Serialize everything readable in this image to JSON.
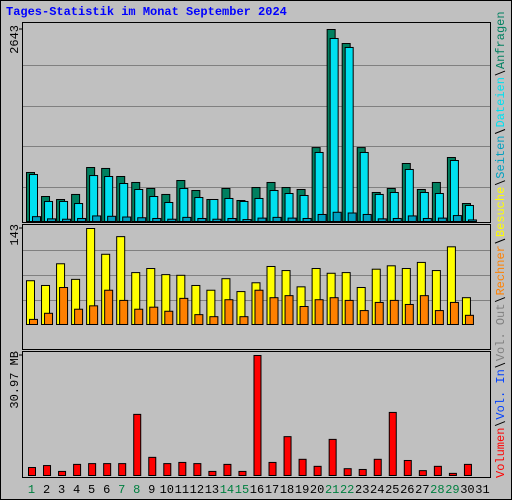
{
  "title": "Tages-Statistik im Monat September 2024",
  "chart_data": [
    {
      "type": "bar",
      "categories": [
        "1",
        "2",
        "3",
        "4",
        "5",
        "6",
        "7",
        "8",
        "9",
        "10",
        "11",
        "12",
        "13",
        "14",
        "15",
        "16",
        "17",
        "18",
        "19",
        "20",
        "21",
        "22",
        "23",
        "24",
        "25",
        "26",
        "27",
        "28",
        "29",
        "30",
        "31"
      ],
      "category_colors": [
        "#008040",
        "#000000",
        "#000000",
        "#000000",
        "#000000",
        "#000000",
        "#008040",
        "#008040",
        "#000000",
        "#000000",
        "#000000",
        "#000000",
        "#000000",
        "#008040",
        "#008040",
        "#000000",
        "#000000",
        "#000000",
        "#000000",
        "#000000",
        "#008040",
        "#008040",
        "#000000",
        "#000000",
        "#000000",
        "#000000",
        "#000000",
        "#008040",
        "#008040",
        "#000000",
        "#000000"
      ],
      "ylim": [
        0,
        2643
      ],
      "yticks": [
        2643
      ],
      "series": [
        {
          "name": "Anfragen",
          "color": "#008060",
          "values": [
            685,
            356,
            315,
            384,
            753,
            740,
            630,
            548,
            466,
            384,
            575,
            438,
            315,
            466,
            301,
            479,
            548,
            479,
            452,
            1026,
            2643,
            2451,
            1026,
            411,
            466,
            808,
            452,
            548,
            890,
            260,
            null
          ]
        },
        {
          "name": "Dateien",
          "color": "#00e0f0",
          "values": [
            657,
            288,
            288,
            260,
            643,
            630,
            534,
            452,
            356,
            274,
            466,
            342,
            315,
            329,
            288,
            329,
            438,
            397,
            370,
            959,
            2520,
            2397,
            959,
            384,
            411,
            726,
            411,
            397,
            849,
            233,
            null
          ]
        },
        {
          "name": "Seiten",
          "color": "#00a0c0",
          "values": [
            80,
            50,
            45,
            55,
            90,
            85,
            75,
            65,
            55,
            45,
            70,
            55,
            45,
            55,
            40,
            60,
            70,
            60,
            55,
            110,
            140,
            130,
            110,
            50,
            55,
            90,
            55,
            60,
            95,
            35,
            null
          ]
        }
      ]
    },
    {
      "type": "bar",
      "ylim": [
        0,
        143
      ],
      "yticks": [
        143
      ],
      "series": [
        {
          "name": "Besuche",
          "color": "#ffff00",
          "values": [
            66,
            59,
            91,
            68,
            143,
            105,
            131,
            78,
            84,
            75,
            74,
            59,
            52,
            69,
            50,
            63,
            87,
            81,
            57,
            84,
            77,
            78,
            56,
            83,
            88,
            84,
            93,
            81,
            116,
            41,
            null
          ]
        },
        {
          "name": "Rechner",
          "color": "#ff8000",
          "values": [
            9,
            18,
            56,
            24,
            29,
            52,
            37,
            24,
            27,
            21,
            40,
            16,
            13,
            38,
            13,
            52,
            41,
            44,
            28,
            38,
            41,
            37,
            22,
            34,
            37,
            31,
            44,
            22,
            34,
            15,
            null
          ]
        }
      ]
    },
    {
      "type": "bar",
      "ylim": [
        0,
        30.97
      ],
      "yticks": [
        {
          "value": 30.97,
          "label": "30.97 MB"
        }
      ],
      "series": [
        {
          "name": "Vol. Out",
          "color": "#808080",
          "values": [
            null,
            null,
            null,
            null,
            null,
            null,
            null,
            null,
            null,
            null,
            null,
            null,
            null,
            null,
            null,
            null,
            null,
            null,
            null,
            null,
            null,
            null,
            null,
            null,
            null,
            null,
            null,
            null,
            null,
            null,
            null
          ]
        },
        {
          "name": "Vol. In",
          "color": "#0040ff",
          "values": [
            null,
            null,
            null,
            null,
            null,
            null,
            null,
            null,
            null,
            null,
            null,
            null,
            null,
            null,
            null,
            null,
            null,
            null,
            null,
            null,
            null,
            null,
            null,
            null,
            null,
            null,
            null,
            null,
            null,
            null,
            null
          ]
        },
        {
          "name": "Volumen",
          "color": "#ff0000",
          "values": [
            2.3,
            2.8,
            1.3,
            3.1,
            3.3,
            3.3,
            3.3,
            15.9,
            4.9,
            3.3,
            3.6,
            3.3,
            1.3,
            3.1,
            1.3,
            30.97,
            3.6,
            10.2,
            4.4,
            2.6,
            9.5,
            2.0,
            1.8,
            4.4,
            16.4,
            4.1,
            1.5,
            2.6,
            0.8,
            3.1,
            null
          ]
        }
      ]
    }
  ]
}
